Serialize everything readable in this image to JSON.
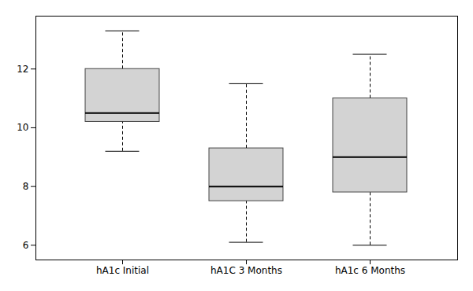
{
  "chart_data": {
    "type": "box",
    "categories": [
      "hA1c Initial",
      "hA1C 3 Months",
      "hA1c 6 Months"
    ],
    "boxes": [
      {
        "whisker_low": 9.2,
        "q1": 10.2,
        "median": 10.5,
        "q3": 12.0,
        "whisker_high": 13.3
      },
      {
        "whisker_low": 6.1,
        "q1": 7.5,
        "median": 8.0,
        "q3": 9.3,
        "whisker_high": 11.5
      },
      {
        "whisker_low": 6.0,
        "q1": 7.8,
        "median": 9.0,
        "q3": 11.0,
        "whisker_high": 12.5
      }
    ],
    "color": "#d3d3d3",
    "ylim": [
      5.5,
      13.8
    ],
    "yticks": [
      6,
      8,
      10,
      12
    ],
    "grid": false
  }
}
